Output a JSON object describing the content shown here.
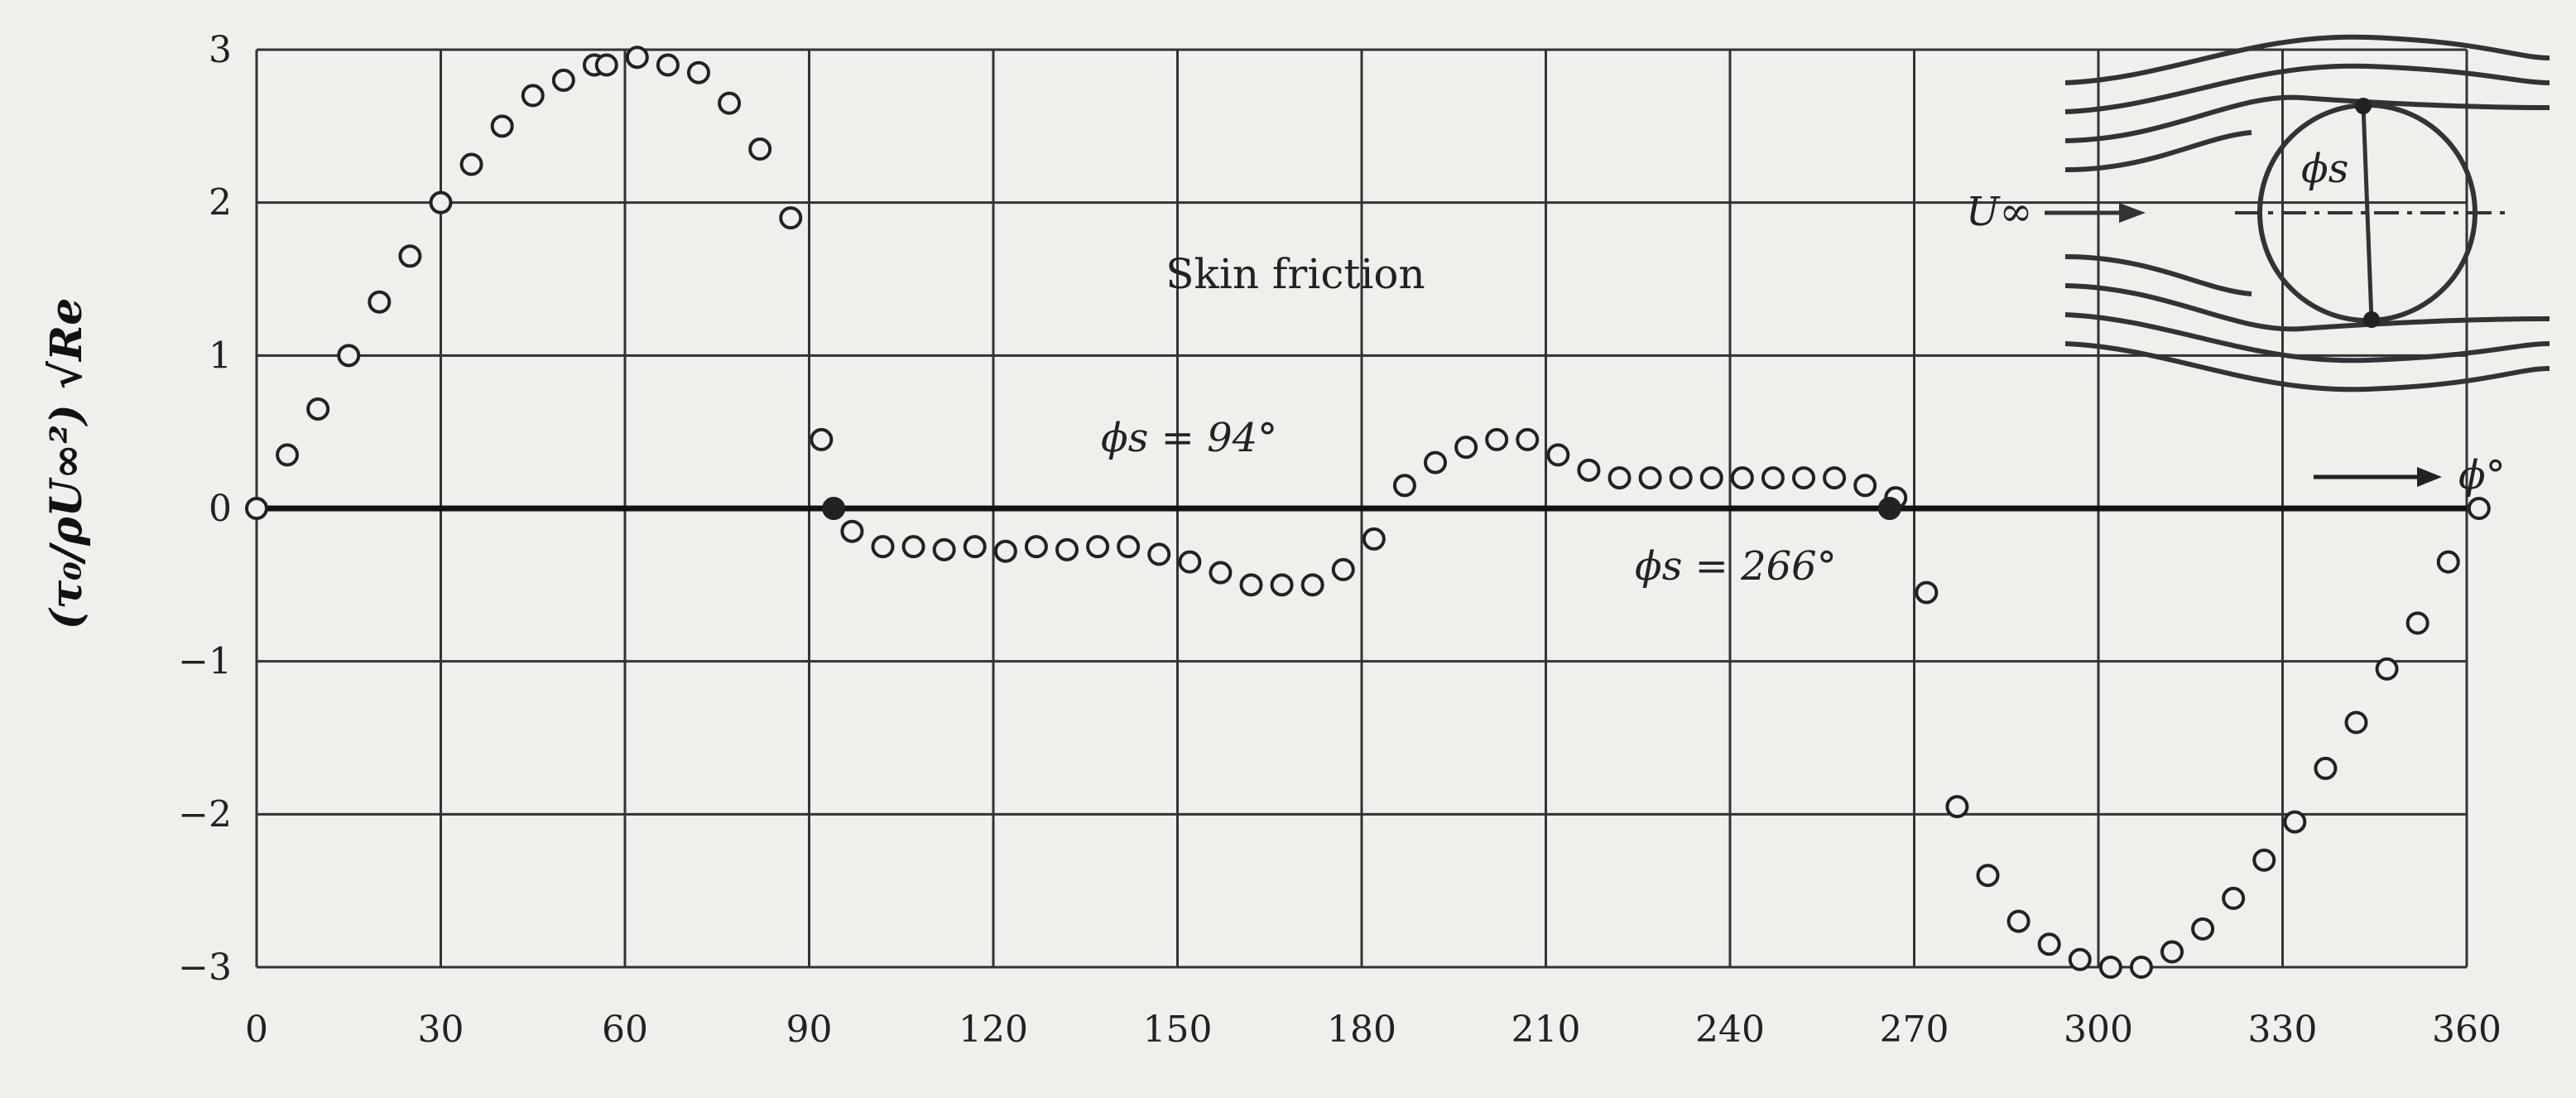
{
  "chart_data": {
    "type": "scatter",
    "title": "Skin friction",
    "xlabel": "ϕ°",
    "ylabel": "(τ₀/ρU∞²) √Re",
    "xlim": [
      0,
      360
    ],
    "ylim": [
      -3,
      3
    ],
    "xticks": [
      "0",
      "30",
      "60",
      "90",
      "120",
      "150",
      "180",
      "210",
      "240",
      "270",
      "300",
      "330",
      "360"
    ],
    "yticks": [
      "3",
      "2",
      "1",
      "0",
      "−1",
      "−2",
      "−3"
    ],
    "grid": true,
    "annotations": [
      "ϕs = 94°",
      "ϕs = 266°"
    ],
    "inset": {
      "freestream_label": "U∞",
      "angle_label": "ϕs"
    },
    "series": [
      {
        "marker": "open-circle",
        "x": [
          0,
          5,
          10,
          15,
          20,
          25,
          30,
          35,
          40,
          45,
          50,
          55,
          57,
          62,
          67,
          72,
          77,
          82,
          87,
          92,
          97,
          102,
          107,
          112,
          117,
          122,
          127,
          132,
          137,
          142,
          147,
          152,
          157,
          162,
          167,
          172,
          177,
          182,
          187,
          192,
          197,
          202,
          207,
          212,
          217,
          222,
          227,
          232,
          237,
          242,
          247,
          252,
          257,
          262,
          267,
          272,
          277,
          282,
          287,
          292,
          297,
          302,
          307,
          312,
          317,
          322,
          327,
          332,
          337,
          342,
          347,
          352,
          357,
          362
        ],
        "y": [
          0,
          0.35,
          0.65,
          1.0,
          1.35,
          1.65,
          2.0,
          2.25,
          2.5,
          2.7,
          2.8,
          2.9,
          2.9,
          2.95,
          2.9,
          2.85,
          2.65,
          2.35,
          1.9,
          0.45,
          -0.15,
          -0.25,
          -0.25,
          -0.27,
          -0.25,
          -0.28,
          -0.25,
          -0.27,
          -0.25,
          -0.25,
          -0.3,
          -0.35,
          -0.42,
          -0.5,
          -0.5,
          -0.5,
          -0.4,
          -0.2,
          0.15,
          0.3,
          0.4,
          0.45,
          0.45,
          0.35,
          0.25,
          0.2,
          0.2,
          0.2,
          0.2,
          0.2,
          0.2,
          0.2,
          0.2,
          0.15,
          0.07,
          -0.55,
          -1.95,
          -2.4,
          -2.7,
          -2.85,
          -2.95,
          -3.0,
          -3.0,
          -2.9,
          -2.75,
          -2.55,
          -2.3,
          -2.05,
          -1.7,
          -1.4,
          -1.05,
          -0.75,
          -0.35,
          0
        ]
      },
      {
        "marker": "filled-circle",
        "x": [
          94,
          266
        ],
        "y": [
          0,
          0
        ]
      }
    ]
  }
}
